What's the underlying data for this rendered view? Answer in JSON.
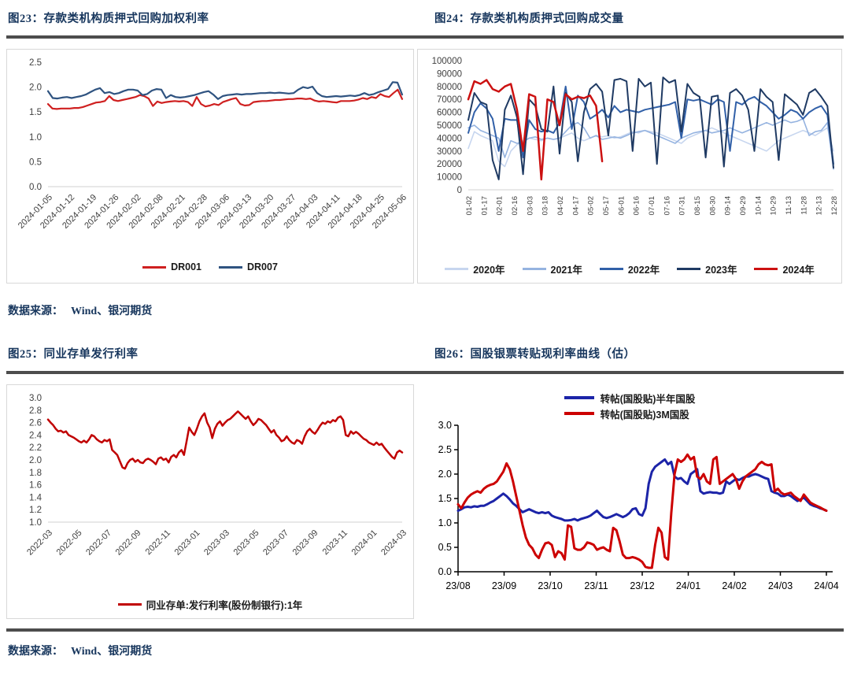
{
  "page": {
    "source_label": "数据来源：",
    "source_value": "Wind、银河期货"
  },
  "chart_data": [
    {
      "id": "c23",
      "type": "line",
      "title": "图23：存款类机构质押式回购加权利率",
      "ylim": [
        0.0,
        2.5
      ],
      "yticks": [
        0.0,
        0.5,
        1.0,
        1.5,
        2.0,
        2.5
      ],
      "ytick_labels": [
        "0.0",
        "0.5",
        "1.0",
        "1.5",
        "2.0",
        "2.5"
      ],
      "xlabels": [
        "2024-01-05",
        "2024-01-12",
        "2024-01-19",
        "2024-01-26",
        "2024-02-02",
        "2024-02-08",
        "2024-02-21",
        "2024-02-28",
        "2024-03-06",
        "2024-03-13",
        "2024-03-20",
        "2024-03-27",
        "2024-04-03",
        "2024-04-11",
        "2024-04-18",
        "2024-04-25",
        "2024-05-06"
      ],
      "legend_position": "bottom",
      "series": [
        {
          "name": "DR001",
          "color": "#cf2020",
          "width": 2.2,
          "values": [
            1.66,
            1.57,
            1.56,
            1.57,
            1.57,
            1.57,
            1.58,
            1.58,
            1.6,
            1.63,
            1.66,
            1.69,
            1.7,
            1.72,
            1.82,
            1.74,
            1.72,
            1.74,
            1.76,
            1.78,
            1.8,
            1.84,
            1.82,
            1.77,
            1.62,
            1.71,
            1.68,
            1.7,
            1.71,
            1.72,
            1.71,
            1.72,
            1.7,
            1.62,
            1.8,
            1.66,
            1.61,
            1.63,
            1.66,
            1.64,
            1.7,
            1.73,
            1.76,
            1.78,
            1.66,
            1.63,
            1.64,
            1.7,
            1.71,
            1.72,
            1.72,
            1.73,
            1.74,
            1.74,
            1.75,
            1.76,
            1.76,
            1.77,
            1.77,
            1.76,
            1.77,
            1.73,
            1.71,
            1.72,
            1.71,
            1.7,
            1.69,
            1.72,
            1.72,
            1.72,
            1.73,
            1.75,
            1.78,
            1.76,
            1.8,
            1.78,
            1.86,
            1.82,
            1.8,
            1.88,
            1.95,
            1.76
          ]
        },
        {
          "name": "DR007",
          "color": "#2f5380",
          "width": 2.2,
          "values": [
            1.92,
            1.78,
            1.77,
            1.79,
            1.8,
            1.78,
            1.8,
            1.82,
            1.85,
            1.9,
            1.95,
            1.98,
            1.88,
            1.9,
            1.86,
            1.88,
            1.92,
            1.95,
            1.95,
            1.93,
            1.84,
            1.86,
            1.93,
            1.96,
            1.95,
            1.78,
            1.84,
            1.8,
            1.79,
            1.8,
            1.82,
            1.84,
            1.87,
            1.9,
            1.92,
            1.85,
            1.76,
            1.82,
            1.84,
            1.85,
            1.86,
            1.85,
            1.86,
            1.86,
            1.87,
            1.88,
            1.88,
            1.89,
            1.88,
            1.89,
            1.88,
            1.87,
            1.88,
            1.95,
            2.0,
            1.98,
            2.01,
            1.88,
            1.82,
            1.8,
            1.81,
            1.82,
            1.81,
            1.82,
            1.83,
            1.82,
            1.84,
            1.88,
            1.84,
            1.86,
            1.9,
            1.93,
            1.96,
            2.1,
            2.09,
            1.85
          ]
        }
      ]
    },
    {
      "id": "c24",
      "type": "line",
      "title": "图24：存款类机构质押式回购成交量",
      "ylim": [
        0,
        100000
      ],
      "yticks": [
        0,
        10000,
        20000,
        30000,
        40000,
        50000,
        60000,
        70000,
        80000,
        90000,
        100000
      ],
      "ytick_labels": [
        "0",
        "10000",
        "20000",
        "30000",
        "40000",
        "50000",
        "60000",
        "70000",
        "80000",
        "90000",
        "100000"
      ],
      "xlabels": [
        "01-02",
        "01-17",
        "02-01",
        "02-16",
        "03-03",
        "03-18",
        "04-02",
        "04-17",
        "05-02",
        "05-17",
        "06-01",
        "06-16",
        "07-01",
        "07-16",
        "07-31",
        "08-15",
        "08-30",
        "09-14",
        "09-29",
        "10-14",
        "10-29",
        "11-13",
        "11-28",
        "12-13",
        "12-28"
      ],
      "legend_position": "bottom",
      "series": [
        {
          "name": "2020年",
          "color": "#c7d6ef",
          "width": 1.6,
          "values": [
            32000,
            45000,
            42000,
            40000,
            38000,
            22000,
            18000,
            30000,
            35000,
            38000,
            40000,
            39000,
            38000,
            40000,
            39000,
            40000,
            42000,
            44000,
            40000,
            38000,
            40000,
            42000,
            41000,
            42000,
            40000,
            41000,
            43000,
            45000,
            44000,
            46000,
            45000,
            44000,
            42000,
            40000,
            38000,
            36000,
            40000,
            42000,
            44000,
            46000,
            48000,
            46000,
            44000,
            42000,
            40000,
            38000,
            36000,
            34000,
            32000,
            30000,
            34000,
            38000,
            40000,
            42000,
            44000,
            46000,
            44000,
            42000,
            45000,
            48000,
            30000
          ]
        },
        {
          "name": "2021年",
          "color": "#95b3e0",
          "width": 1.6,
          "values": [
            48000,
            50000,
            46000,
            44000,
            42000,
            40000,
            25000,
            38000,
            36000,
            37000,
            40000,
            41000,
            39000,
            40000,
            39000,
            40000,
            45000,
            50000,
            52000,
            48000,
            40000,
            42000,
            39000,
            40000,
            41000,
            40000,
            42000,
            44000,
            45000,
            46000,
            44000,
            42000,
            40000,
            38000,
            36000,
            40000,
            42000,
            44000,
            45000,
            46000,
            44000,
            45000,
            46000,
            48000,
            46000,
            44000,
            46000,
            48000,
            50000,
            52000,
            50000,
            52000,
            54000,
            52000,
            53000,
            55000,
            42000,
            45000,
            46000,
            52000,
            16000
          ]
        },
        {
          "name": "2022年",
          "color": "#3160a8",
          "width": 2,
          "values": [
            44000,
            60000,
            67000,
            63000,
            55000,
            30000,
            55000,
            54000,
            54000,
            25000,
            54000,
            47000,
            45000,
            46000,
            44000,
            52000,
            80000,
            47000,
            73000,
            68000,
            55000,
            58000,
            62000,
            56000,
            65000,
            60000,
            62000,
            61000,
            60000,
            62000,
            63000,
            64000,
            65000,
            66000,
            68000,
            40000,
            70000,
            69000,
            70000,
            68000,
            66000,
            70000,
            68000,
            30000,
            68000,
            66000,
            70000,
            72000,
            68000,
            65000,
            60000,
            55000,
            58000,
            62000,
            60000,
            55000,
            60000,
            63000,
            65000,
            58000,
            20000
          ]
        },
        {
          "name": "2023年",
          "color": "#1f3a63",
          "width": 2,
          "values": [
            54000,
            75000,
            68000,
            66000,
            23000,
            8000,
            62000,
            73000,
            56000,
            12000,
            70000,
            65000,
            47000,
            45000,
            80000,
            28000,
            75000,
            68000,
            22000,
            60000,
            78000,
            82000,
            76000,
            42000,
            85000,
            86000,
            84000,
            30000,
            86000,
            80000,
            83000,
            20000,
            87000,
            83000,
            85000,
            45000,
            82000,
            75000,
            72000,
            25000,
            72000,
            73000,
            18000,
            75000,
            78000,
            73000,
            62000,
            30000,
            78000,
            72000,
            68000,
            23000,
            74000,
            70000,
            66000,
            58000,
            75000,
            78000,
            72000,
            65000,
            17000
          ]
        },
        {
          "name": "2024年",
          "color": "#cc1111",
          "width": 2.5,
          "values": [
            70000,
            84000,
            82000,
            85000,
            78000,
            76000,
            80000,
            82000,
            62000,
            30000,
            74000,
            72000,
            8000,
            70000,
            68000,
            50000,
            74000,
            70000,
            72000,
            71000,
            73000,
            65000,
            22000,
            null,
            null,
            null,
            null,
            null,
            null,
            null,
            null,
            null,
            null,
            null,
            null,
            null,
            null,
            null,
            null,
            null,
            null,
            null,
            null,
            null,
            null,
            null,
            null,
            null,
            null,
            null,
            null,
            null,
            null,
            null,
            null,
            null,
            null,
            null,
            null,
            null,
            null
          ]
        }
      ]
    },
    {
      "id": "c25",
      "type": "line",
      "title": "图25：同业存单发行利率",
      "ylim": [
        1.0,
        3.0
      ],
      "yticks": [
        1.0,
        1.2,
        1.4,
        1.6,
        1.8,
        2.0,
        2.2,
        2.4,
        2.6,
        2.8,
        3.0
      ],
      "ytick_labels": [
        "1.0",
        "1.2",
        "1.4",
        "1.6",
        "1.8",
        "2.0",
        "2.2",
        "2.4",
        "2.6",
        "2.8",
        "3.0"
      ],
      "xlabels": [
        "2022-03",
        "2022-05",
        "2022-07",
        "2022-09",
        "2022-11",
        "2023-01",
        "2023-03",
        "2023-05",
        "2023-07",
        "2023-09",
        "2023-11",
        "2024-01",
        "2024-03"
      ],
      "legend_position": "bottom",
      "series": [
        {
          "name": "同业存单:发行利率(股份制银行):1年",
          "color": "#c00000",
          "width": 2.5,
          "values": [
            2.65,
            2.6,
            2.56,
            2.5,
            2.46,
            2.47,
            2.44,
            2.46,
            2.4,
            2.38,
            2.36,
            2.33,
            2.3,
            2.28,
            2.31,
            2.28,
            2.33,
            2.4,
            2.38,
            2.33,
            2.3,
            2.28,
            2.32,
            2.3,
            2.33,
            2.16,
            2.12,
            2.08,
            1.98,
            1.88,
            1.86,
            1.95,
            2.0,
            2.02,
            1.97,
            2.0,
            1.96,
            1.95,
            2.0,
            2.02,
            2.0,
            1.97,
            1.93,
            2.02,
            2.04,
            2.0,
            2.02,
            1.96,
            2.05,
            2.08,
            2.04,
            2.12,
            2.16,
            2.08,
            2.3,
            2.52,
            2.45,
            2.4,
            2.5,
            2.62,
            2.7,
            2.75,
            2.6,
            2.52,
            2.35,
            2.5,
            2.58,
            2.62,
            2.55,
            2.6,
            2.64,
            2.66,
            2.7,
            2.74,
            2.78,
            2.74,
            2.7,
            2.66,
            2.7,
            2.62,
            2.56,
            2.6,
            2.66,
            2.64,
            2.6,
            2.56,
            2.5,
            2.44,
            2.48,
            2.4,
            2.36,
            2.3,
            2.32,
            2.38,
            2.32,
            2.28,
            2.26,
            2.32,
            2.3,
            2.26,
            2.38,
            2.46,
            2.5,
            2.45,
            2.42,
            2.48,
            2.55,
            2.6,
            2.58,
            2.62,
            2.6,
            2.64,
            2.62,
            2.68,
            2.7,
            2.64,
            2.4,
            2.38,
            2.46,
            2.42,
            2.45,
            2.42,
            2.38,
            2.34,
            2.32,
            2.28,
            2.26,
            2.24,
            2.28,
            2.24,
            2.26,
            2.2,
            2.15,
            2.1,
            2.05,
            2.02,
            2.12,
            2.15,
            2.12
          ]
        }
      ]
    },
    {
      "id": "c26",
      "type": "line",
      "title": "图26：国股银票转贴现利率曲线（估）",
      "ylim": [
        0.0,
        3.0
      ],
      "yticks": [
        0.0,
        0.5,
        1.0,
        1.5,
        2.0,
        2.5,
        3.0
      ],
      "ytick_labels": [
        "0.0",
        "0.5",
        "1.0",
        "1.5",
        "2.0",
        "2.5",
        "3.0"
      ],
      "xlabels": [
        "23/08",
        "23/09",
        "23/10",
        "23/11",
        "23/12",
        "24/01",
        "24/02",
        "24/03",
        "24/04"
      ],
      "legend_position": "top",
      "series": [
        {
          "name": "转帖(国股贴)半年国股",
          "color": "#1c24a8",
          "width": 3,
          "values": [
            1.25,
            1.28,
            1.32,
            1.33,
            1.32,
            1.34,
            1.33,
            1.35,
            1.35,
            1.38,
            1.42,
            1.45,
            1.5,
            1.55,
            1.6,
            1.55,
            1.48,
            1.4,
            1.35,
            1.28,
            1.22,
            1.25,
            1.28,
            1.25,
            1.22,
            1.2,
            1.22,
            1.2,
            1.22,
            1.15,
            1.12,
            1.1,
            1.08,
            1.05,
            1.05,
            1.06,
            1.08,
            1.05,
            1.08,
            1.1,
            1.12,
            1.15,
            1.2,
            1.25,
            1.18,
            1.12,
            1.1,
            1.12,
            1.15,
            1.18,
            1.15,
            1.12,
            1.15,
            1.2,
            1.28,
            1.3,
            1.18,
            1.15,
            1.3,
            1.8,
            2.05,
            2.15,
            2.2,
            2.25,
            2.3,
            2.2,
            2.25,
            1.95,
            1.9,
            1.92,
            1.85,
            1.8,
            2.0,
            2.05,
            2.1,
            1.65,
            1.6,
            1.62,
            1.63,
            1.62,
            1.62,
            1.6,
            1.62,
            1.85,
            1.8,
            1.85,
            1.9,
            1.88,
            1.92,
            1.95,
            1.95,
            1.98,
            2.0,
            1.98,
            1.95,
            1.92,
            1.9,
            1.65,
            1.62,
            1.6,
            1.55,
            1.55,
            1.58,
            1.55,
            1.5,
            1.45,
            1.48,
            1.52,
            1.45,
            1.38,
            1.35,
            1.33,
            1.3,
            1.28,
            1.25
          ]
        },
        {
          "name": "转帖(国股贴)3M国股",
          "color": "#cc0000",
          "width": 3,
          "values": [
            1.38,
            1.3,
            1.42,
            1.52,
            1.58,
            1.62,
            1.65,
            1.62,
            1.7,
            1.75,
            1.78,
            1.8,
            1.85,
            1.95,
            2.05,
            2.22,
            2.1,
            1.85,
            1.55,
            1.25,
            0.95,
            0.7,
            0.55,
            0.48,
            0.35,
            0.28,
            0.45,
            0.58,
            0.6,
            0.55,
            0.3,
            0.42,
            0.38,
            0.25,
            0.95,
            0.92,
            0.48,
            0.45,
            0.45,
            0.5,
            0.6,
            0.58,
            0.55,
            0.45,
            0.48,
            0.5,
            0.45,
            0.42,
            0.9,
            0.85,
            0.62,
            0.35,
            0.28,
            0.28,
            0.3,
            0.28,
            0.25,
            0.2,
            0.1,
            0.08,
            0.08,
            0.55,
            0.9,
            0.8,
            0.3,
            0.25,
            1.2,
            2.0,
            2.3,
            2.25,
            2.3,
            2.4,
            2.3,
            2.35,
            1.95,
            1.9,
            2.0,
            1.85,
            1.8,
            2.3,
            2.35,
            1.8,
            1.85,
            1.9,
            1.95,
            2.0,
            1.9,
            1.7,
            1.85,
            1.95,
            2.0,
            2.05,
            2.1,
            2.2,
            2.25,
            2.2,
            2.18,
            2.2,
            1.65,
            1.7,
            1.62,
            1.58,
            1.6,
            1.62,
            1.55,
            1.5,
            1.45,
            1.58,
            1.5,
            1.42,
            1.38,
            1.35,
            1.32,
            1.28,
            1.25
          ]
        }
      ]
    }
  ]
}
